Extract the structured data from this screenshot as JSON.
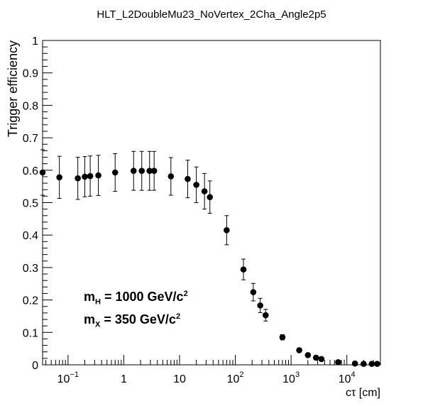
{
  "chart_data": {
    "type": "scatter",
    "title": "HLT_L2DoubleMu23_NoVertex_2Cha_Angle2p5",
    "xlabel": "cτ [cm]",
    "ylabel": "Trigger efficiency",
    "x_scale": "log",
    "xlim": [
      0.035,
      40000
    ],
    "ylim": [
      0,
      1
    ],
    "y_ticks": [
      "0",
      "0.1",
      "0.2",
      "0.3",
      "0.4",
      "0.5",
      "0.6",
      "0.7",
      "0.8",
      "0.9",
      "1"
    ],
    "x_ticks": [
      {
        "value": 0.1,
        "base": "10",
        "exp": "−1"
      },
      {
        "value": 1,
        "base": "1",
        "exp": ""
      },
      {
        "value": 10,
        "base": "10",
        "exp": ""
      },
      {
        "value": 100,
        "base": "10",
        "exp": "2"
      },
      {
        "value": 1000,
        "base": "10",
        "exp": "3"
      },
      {
        "value": 10000,
        "base": "10",
        "exp": "4"
      }
    ],
    "points": [
      {
        "x": 0.035,
        "y": 0.593,
        "err": 0.07
      },
      {
        "x": 0.07,
        "y": 0.578,
        "err": 0.065
      },
      {
        "x": 0.15,
        "y": 0.575,
        "err": 0.065
      },
      {
        "x": 0.2,
        "y": 0.58,
        "err": 0.062
      },
      {
        "x": 0.25,
        "y": 0.582,
        "err": 0.062
      },
      {
        "x": 0.35,
        "y": 0.584,
        "err": 0.062
      },
      {
        "x": 0.7,
        "y": 0.593,
        "err": 0.058
      },
      {
        "x": 1.5,
        "y": 0.598,
        "err": 0.06
      },
      {
        "x": 2.1,
        "y": 0.598,
        "err": 0.06
      },
      {
        "x": 2.9,
        "y": 0.598,
        "err": 0.06
      },
      {
        "x": 3.5,
        "y": 0.598,
        "err": 0.06
      },
      {
        "x": 7,
        "y": 0.581,
        "err": 0.058
      },
      {
        "x": 14,
        "y": 0.573,
        "err": 0.058
      },
      {
        "x": 20,
        "y": 0.555,
        "err": 0.055
      },
      {
        "x": 28,
        "y": 0.535,
        "err": 0.055
      },
      {
        "x": 35,
        "y": 0.517,
        "err": 0.05
      },
      {
        "x": 70,
        "y": 0.415,
        "err": 0.045
      },
      {
        "x": 140,
        "y": 0.294,
        "err": 0.032
      },
      {
        "x": 210,
        "y": 0.224,
        "err": 0.027
      },
      {
        "x": 280,
        "y": 0.183,
        "err": 0.022
      },
      {
        "x": 350,
        "y": 0.153,
        "err": 0.018
      },
      {
        "x": 700,
        "y": 0.085,
        "err": 0.008
      },
      {
        "x": 1400,
        "y": 0.045,
        "err": 0.005
      },
      {
        "x": 2000,
        "y": 0.03,
        "err": 0.004
      },
      {
        "x": 2800,
        "y": 0.022,
        "err": 0.004
      },
      {
        "x": 3500,
        "y": 0.018,
        "err": 0.004
      },
      {
        "x": 7000,
        "y": 0.008,
        "err": 0.003
      },
      {
        "x": 14000,
        "y": 0.004,
        "err": 0.002
      },
      {
        "x": 20000,
        "y": 0.003,
        "err": 0.002
      },
      {
        "x": 28000,
        "y": 0.003,
        "err": 0.002
      },
      {
        "x": 35000,
        "y": 0.003,
        "err": 0.002
      }
    ],
    "annotations": [
      {
        "main": "m",
        "sub": "H",
        "text": " = 1000 GeV/c",
        "sup": "2"
      },
      {
        "main": "m",
        "sub": "X",
        "text": " = 350 GeV/c",
        "sup": "2"
      }
    ]
  }
}
